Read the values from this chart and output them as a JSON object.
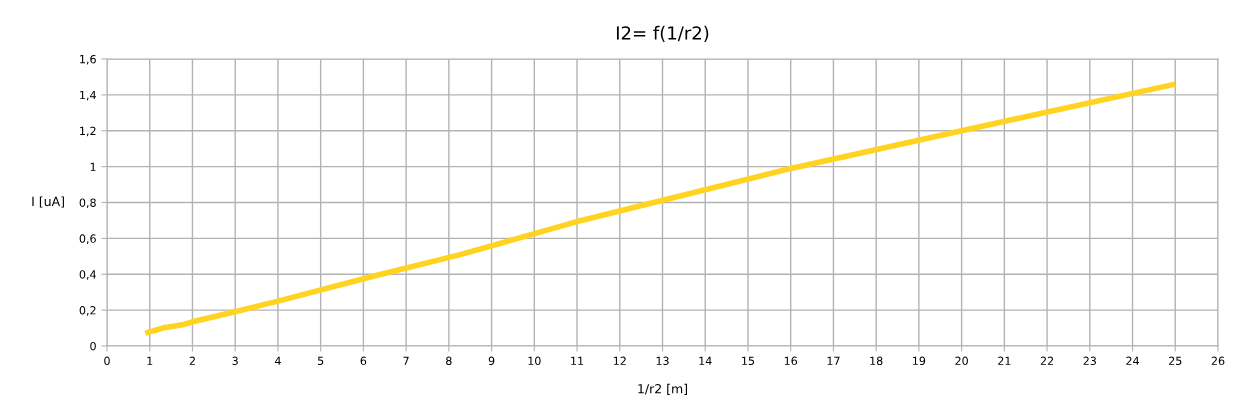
{
  "chart_data": {
    "type": "line",
    "title": "I2= f(1/r2)",
    "xlabel": "1/r2 [m]",
    "ylabel": "I [uA]",
    "x": [
      0.9,
      1.0,
      1.1,
      1.3,
      1.8,
      2.0,
      2.8,
      4.0,
      6.25,
      8.2,
      11.1,
      16.0,
      20.0,
      25.0
    ],
    "series": [
      {
        "color": "#ffd320",
        "values": [
          0.07,
          0.08,
          0.085,
          0.1,
          0.12,
          0.135,
          0.18,
          0.25,
          0.39,
          0.505,
          0.7,
          0.99,
          1.2,
          1.46
        ]
      }
    ],
    "xlim": [
      0,
      26
    ],
    "xticks": [
      0,
      1,
      2,
      3,
      4,
      5,
      6,
      7,
      8,
      9,
      10,
      11,
      12,
      13,
      14,
      15,
      16,
      17,
      18,
      19,
      20,
      21,
      22,
      23,
      24,
      25,
      26
    ],
    "ylim": [
      0,
      1.6
    ],
    "yticks": [
      0,
      {
        "value": 0.2,
        "label": "0,2"
      },
      {
        "value": 0.4,
        "label": "0,4"
      },
      {
        "value": 0.6,
        "label": "0,6"
      },
      {
        "value": 0.8,
        "label": "0,8"
      },
      1,
      {
        "value": 1.2,
        "label": "1,2"
      },
      {
        "value": 1.4,
        "label": "1,4"
      },
      {
        "value": 1.6,
        "label": "1,6"
      }
    ],
    "grid": true,
    "legend": false,
    "marker": "none",
    "line_style": "solid"
  }
}
